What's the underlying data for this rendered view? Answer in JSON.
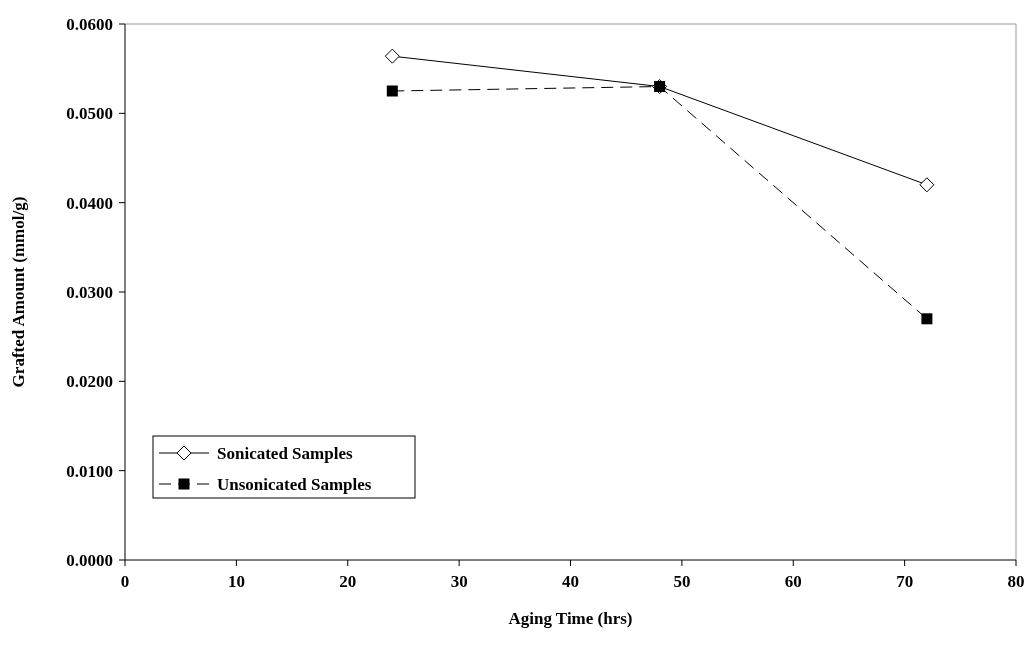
{
  "chart_data": {
    "type": "line",
    "xlabel": "Aging Time (hrs)",
    "ylabel": "Grafted Amount (mmol/g)",
    "xlim": [
      0,
      80
    ],
    "xticks": [
      0,
      10,
      20,
      30,
      40,
      50,
      60,
      70,
      80
    ],
    "ylim": [
      0,
      0.06
    ],
    "yticks": [
      {
        "value": 0,
        "label": "0.0000"
      },
      {
        "value": 0.01,
        "label": "0.0100"
      },
      {
        "value": 0.02,
        "label": "0.0200"
      },
      {
        "value": 0.03,
        "label": "0.0300"
      },
      {
        "value": 0.04,
        "label": "0.0400"
      },
      {
        "value": 0.05,
        "label": "0.0500"
      },
      {
        "value": 0.06,
        "label": "0.0600"
      }
    ],
    "x": [
      24,
      48,
      72
    ],
    "series": [
      {
        "name": "Sonicated Samples",
        "color": "#000000",
        "values": [
          0.0564,
          0.053,
          0.042
        ],
        "marker": "diamond",
        "line_style": "solid"
      },
      {
        "name": "Unsonicated Samples",
        "color": "#000000",
        "values": [
          0.0525,
          0.053,
          0.027
        ],
        "marker": "square",
        "line_style": "dashed"
      }
    ],
    "legend": "bottom left",
    "grid": false
  }
}
